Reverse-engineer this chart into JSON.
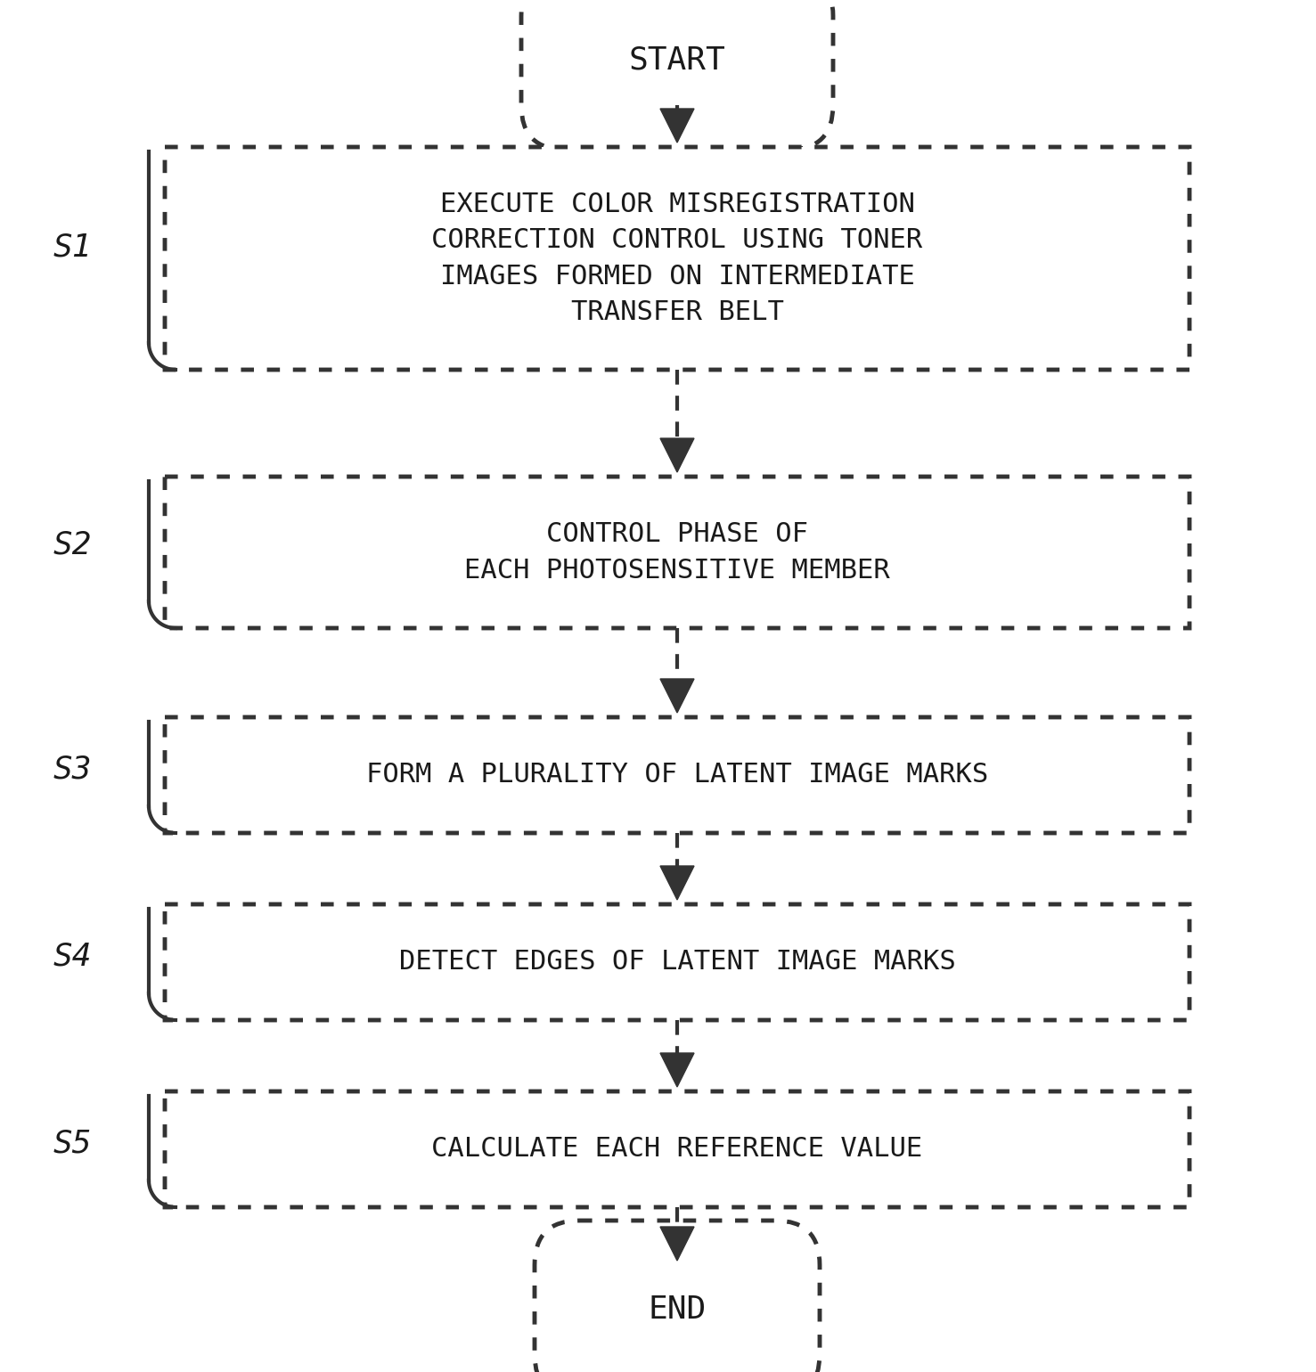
{
  "background_color": "#ffffff",
  "text_color": "#1a1a1a",
  "box_edge_color": "#333333",
  "box_fill_color": "#ffffff",
  "arrow_color": "#333333",
  "start_end_text": [
    "START",
    "END"
  ],
  "steps": [
    {
      "label": "S1",
      "text": "EXECUTE COLOR MISREGISTRATION\nCORRECTION CONTROL USING TONER\nIMAGES FORMED ON INTERMEDIATE\nTRANSFER BELT"
    },
    {
      "label": "S2",
      "text": "CONTROL PHASE OF\nEACH PHOTOSENSITIVE MEMBER"
    },
    {
      "label": "S3",
      "text": "FORM A PLURALITY OF LATENT IMAGE MARKS"
    },
    {
      "label": "S4",
      "text": "DETECT EDGES OF LATENT IMAGE MARKS"
    },
    {
      "label": "S5",
      "text": "CALCULATE EACH REFERENCE VALUE"
    }
  ],
  "figsize": [
    14.77,
    15.4
  ],
  "dpi": 100
}
